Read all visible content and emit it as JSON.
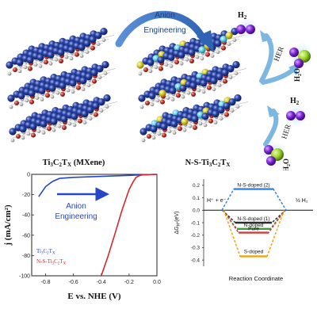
{
  "top": {
    "arrow_label_line1": "Anion",
    "arrow_label_line2": "Engineering",
    "left_caption": "Ti3C2TX (MXene)",
    "right_caption": "N-S-Ti3C2TX",
    "her_label": "HER",
    "h2_label": "H2",
    "h2o_label": "H2O"
  },
  "chart_data": [
    {
      "type": "line",
      "title": "",
      "xlabel": "E vs. NHE (V)",
      "ylabel": "j (mA/cm²)",
      "xlim": [
        -0.9,
        0.0
      ],
      "ylim": [
        -100,
        0
      ],
      "xticks": [
        "-0.8",
        "-0.6",
        "-0.4",
        "-0.2",
        "0.0"
      ],
      "yticks": [
        "0",
        "-20",
        "-40",
        "-60",
        "-80",
        "-100"
      ],
      "annotation_line1": "Anion",
      "annotation_line2": "Engineering",
      "legend_position": "bottom-left",
      "series": [
        {
          "name": "Ti3C2TX",
          "color": "#2747c9",
          "x": [
            -0.85,
            -0.8,
            -0.75,
            -0.7,
            -0.6,
            -0.5,
            -0.4,
            -0.3,
            -0.2,
            -0.1,
            0.0
          ],
          "y": [
            -22,
            -12,
            -7,
            -4,
            -3,
            -2.5,
            -2,
            -1.5,
            -1,
            -0.5,
            0
          ]
        },
        {
          "name": "N-S-Ti3C2TX",
          "color": "#d62828",
          "x": [
            -0.4,
            -0.35,
            -0.3,
            -0.25,
            -0.2,
            -0.17,
            -0.15,
            -0.12,
            -0.1,
            0.0
          ],
          "y": [
            -100,
            -80,
            -58,
            -35,
            -15,
            -7,
            -3,
            -1,
            -0.5,
            0
          ]
        }
      ]
    },
    {
      "type": "diagram",
      "title": "",
      "xlabel": "Reaction Coordinate",
      "ylabel": "ΔG_H*(eV)",
      "ylim": [
        -0.45,
        0.25
      ],
      "yticks": [
        "0.2",
        "0.1",
        "0.0",
        "-0.1",
        "-0.2",
        "-0.3",
        "-0.4"
      ],
      "left_label": "H⁺ + e⁻",
      "right_label": "½ H₂",
      "levels": [
        {
          "name": "N-S-doped (2)",
          "value": 0.17,
          "color": "#2e86de"
        },
        {
          "name": "N-S-doped (1)",
          "value": -0.1,
          "color": "#2c2c2c"
        },
        {
          "name": "N-doped",
          "value": -0.15,
          "color": "#3a9d3a"
        },
        {
          "name": "Pure",
          "value": -0.18,
          "color": "#d63a3a"
        },
        {
          "name": "S-doped",
          "value": -0.37,
          "color": "#f2a20c"
        }
      ]
    }
  ]
}
